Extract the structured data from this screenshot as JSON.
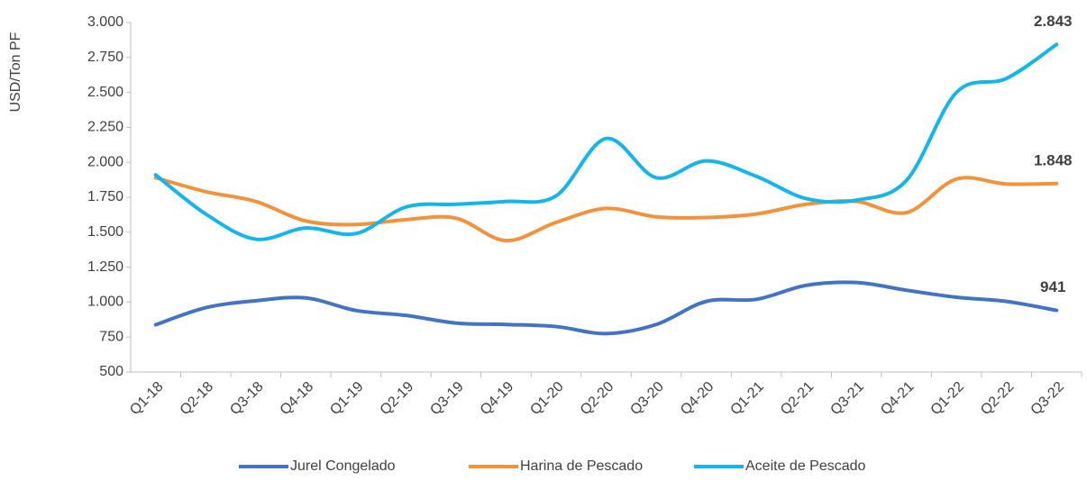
{
  "chart_data": {
    "type": "line",
    "y_label": "USD/Ton PF",
    "categories": [
      "Q1-18",
      "Q2-18",
      "Q3-18",
      "Q4-18",
      "Q1-19",
      "Q2-19",
      "Q3-19",
      "Q4-19",
      "Q1-20",
      "Q2-20",
      "Q3-20",
      "Q4-20",
      "Q1-21",
      "Q2-21",
      "Q3-21",
      "Q4-21",
      "Q1-22",
      "Q2-22",
      "Q3-22"
    ],
    "series": [
      {
        "name": "Jurel Congelado",
        "color": "#4472c4",
        "values": [
          838,
          960,
          1010,
          1030,
          940,
          905,
          850,
          840,
          825,
          775,
          840,
          1005,
          1020,
          1120,
          1140,
          1085,
          1035,
          1005,
          941
        ],
        "value_labels": [
          null,
          null,
          null,
          null,
          null,
          null,
          null,
          null,
          null,
          null,
          null,
          null,
          null,
          null,
          null,
          null,
          null,
          null,
          "941"
        ]
      },
      {
        "name": "Harina de Pescado",
        "color": "#f4923c",
        "values": [
          1890,
          1790,
          1720,
          1580,
          1555,
          1590,
          1600,
          1440,
          1570,
          1670,
          1610,
          1605,
          1630,
          1700,
          1720,
          1640,
          1880,
          1845,
          1848
        ],
        "value_labels": [
          null,
          null,
          null,
          null,
          null,
          null,
          null,
          null,
          null,
          null,
          null,
          null,
          null,
          null,
          null,
          null,
          null,
          null,
          "1.848"
        ]
      },
      {
        "name": "Aceite de Pescado",
        "color": "#13b5ea",
        "values": [
          1910,
          1630,
          1450,
          1530,
          1490,
          1680,
          1700,
          1720,
          1760,
          2170,
          1890,
          2010,
          1900,
          1740,
          1730,
          1870,
          2500,
          2600,
          2843
        ],
        "value_labels": [
          null,
          null,
          null,
          null,
          null,
          null,
          null,
          null,
          null,
          null,
          null,
          null,
          null,
          null,
          null,
          null,
          null,
          null,
          "2.843"
        ]
      }
    ],
    "ylim": [
      500,
      3000
    ],
    "yticks": [
      500,
      {
        "value": 750,
        "label": "750"
      },
      {
        "value": 1000,
        "label": "1.000"
      },
      {
        "value": 1250,
        "label": "1.250"
      },
      {
        "value": 1500,
        "label": "1.500"
      },
      {
        "value": 1750,
        "label": "1.750"
      },
      {
        "value": 2000,
        "label": "2.000"
      },
      {
        "value": 2250,
        "label": "2.250"
      },
      {
        "value": 2500,
        "label": "2.500"
      },
      {
        "value": 2750,
        "label": "2.750"
      },
      {
        "value": 3000,
        "label": "3.000"
      }
    ],
    "legend": "bottom"
  }
}
